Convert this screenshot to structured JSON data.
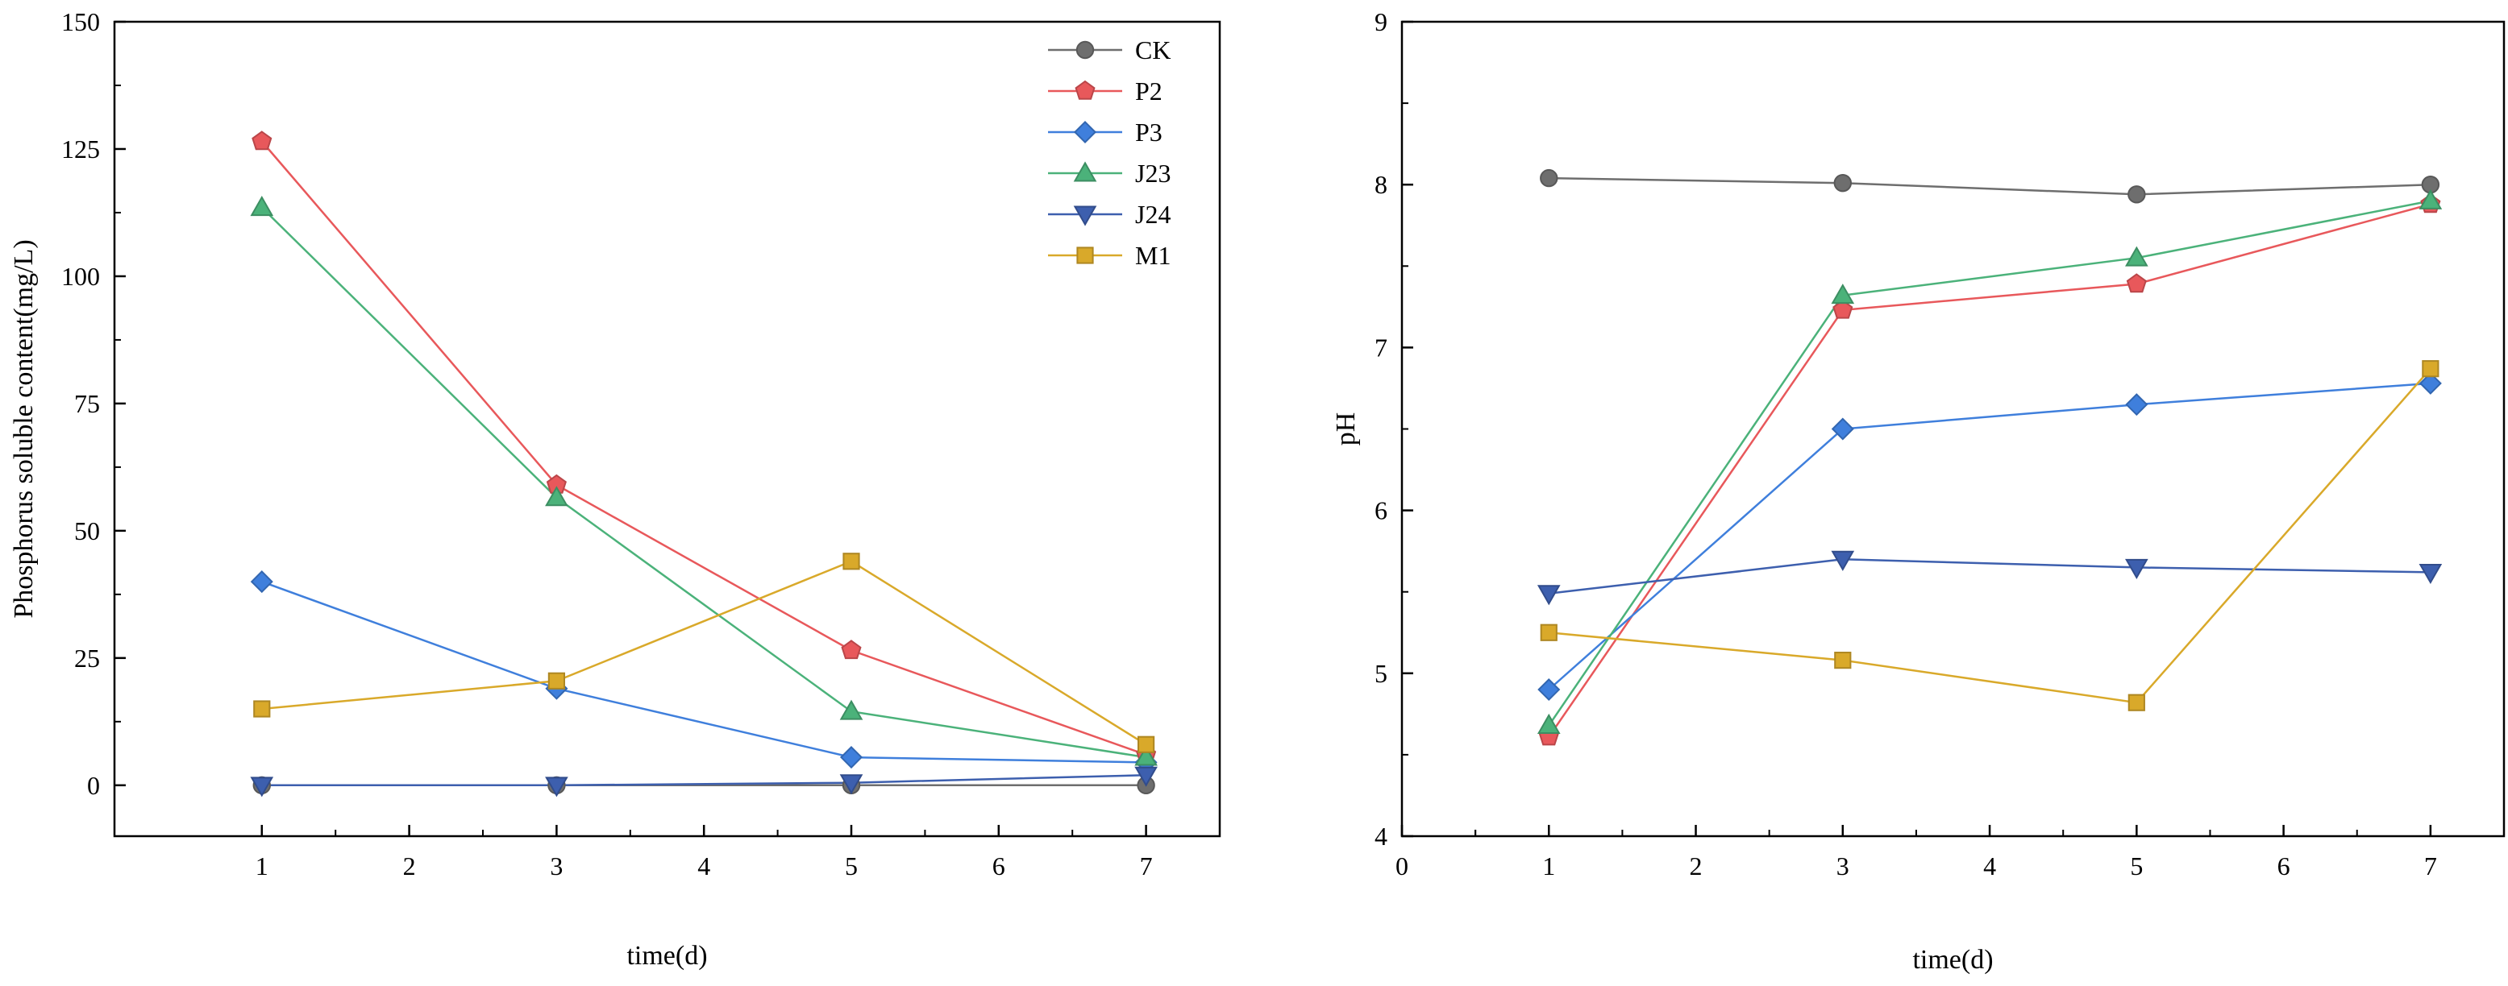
{
  "chart_data": [
    {
      "type": "line",
      "title": "",
      "xlabel": "time(d)",
      "ylabel": "Phosphorus soluble content(mg/L)",
      "xlim": [
        0,
        7.5
      ],
      "ylim": [
        -10,
        150
      ],
      "xticks": [
        "1",
        "2",
        "3",
        "4",
        "5",
        "6",
        "7"
      ],
      "yticks": [
        "0",
        "25",
        "50",
        "75",
        "100",
        "125",
        "150"
      ],
      "legend_position": "top-right",
      "x": [
        1,
        3,
        5,
        7
      ],
      "series": [
        {
          "name": "CK",
          "marker": "circle",
          "color": "#6e6e6e",
          "values": [
            0,
            0,
            0,
            0
          ]
        },
        {
          "name": "P2",
          "marker": "pentagon",
          "color": "#e8585b",
          "values": [
            126.5,
            59,
            26.5,
            6
          ]
        },
        {
          "name": "P3",
          "marker": "diamond",
          "color": "#3f7fdc",
          "values": [
            40,
            19,
            5.5,
            4.5
          ]
        },
        {
          "name": "J23",
          "marker": "triangle",
          "color": "#4bb27a",
          "values": [
            113.5,
            56.5,
            14.5,
            5.5
          ]
        },
        {
          "name": "J24",
          "marker": "tridown",
          "color": "#3d5fae",
          "values": [
            0,
            0,
            0.5,
            2
          ]
        },
        {
          "name": "M1",
          "marker": "square",
          "color": "#d9a92a",
          "values": [
            15,
            20.5,
            44,
            8
          ]
        }
      ]
    },
    {
      "type": "line",
      "title": "",
      "xlabel": "time(d)",
      "ylabel": "pH",
      "xlim": [
        0,
        7.5
      ],
      "ylim": [
        4,
        9
      ],
      "xticks": [
        "0",
        "1",
        "2",
        "3",
        "4",
        "5",
        "6",
        "7"
      ],
      "yticks": [
        "4",
        "5",
        "6",
        "7",
        "8",
        "9"
      ],
      "x": [
        1,
        3,
        5,
        7
      ],
      "series": [
        {
          "name": "CK",
          "marker": "circle",
          "color": "#6e6e6e",
          "values": [
            8.04,
            8.01,
            7.94,
            8.0
          ]
        },
        {
          "name": "P2",
          "marker": "pentagon",
          "color": "#e8585b",
          "values": [
            4.61,
            7.23,
            7.39,
            7.88
          ]
        },
        {
          "name": "P3",
          "marker": "diamond",
          "color": "#3f7fdc",
          "values": [
            4.9,
            6.5,
            6.65,
            6.78
          ]
        },
        {
          "name": "J23",
          "marker": "triangle",
          "color": "#4bb27a",
          "values": [
            4.68,
            7.32,
            7.55,
            7.9
          ]
        },
        {
          "name": "J24",
          "marker": "tridown",
          "color": "#3d5fae",
          "values": [
            5.49,
            5.7,
            5.65,
            5.62
          ]
        },
        {
          "name": "M1",
          "marker": "square",
          "color": "#d9a92a",
          "values": [
            5.25,
            5.08,
            4.82,
            6.87
          ]
        }
      ]
    }
  ]
}
